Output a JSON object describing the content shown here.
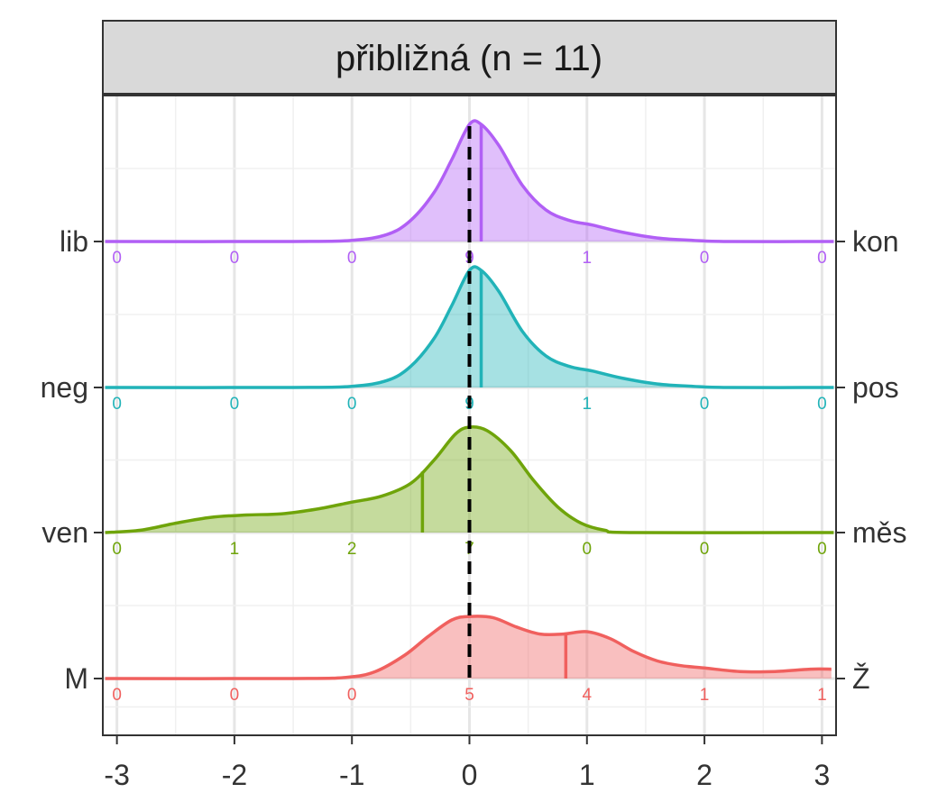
{
  "chart_data": {
    "type": "ridgeline-density",
    "title": "přibližná (n = 11)",
    "xlabel": "",
    "ylabel": "",
    "xlim": [
      -3.12,
      3.12
    ],
    "x_ticks": [
      -3,
      -2,
      -1,
      0,
      1,
      2,
      3
    ],
    "x_tick_labels": [
      "-3",
      "-2",
      "-1",
      "0",
      "1",
      "2",
      "3"
    ],
    "reference_line_x": 0,
    "grid": true,
    "count_bins": [
      -3,
      -2,
      -1,
      0,
      1,
      2,
      3
    ],
    "series": [
      {
        "left_label": "lib",
        "right_label": "kon",
        "color": "#B15FF5",
        "mean": 0.1,
        "counts": [
          "0",
          "0",
          "0",
          "9",
          "1",
          "0",
          "0"
        ],
        "density": [
          [
            -3.1,
            0
          ],
          [
            -1.5,
            0
          ],
          [
            -1.0,
            0.01
          ],
          [
            -0.7,
            0.06
          ],
          [
            -0.5,
            0.18
          ],
          [
            -0.3,
            0.42
          ],
          [
            -0.15,
            0.7
          ],
          [
            0,
            1.0
          ],
          [
            0.1,
            1.0
          ],
          [
            0.25,
            0.82
          ],
          [
            0.45,
            0.48
          ],
          [
            0.65,
            0.27
          ],
          [
            0.85,
            0.18
          ],
          [
            1.05,
            0.14
          ],
          [
            1.3,
            0.08
          ],
          [
            1.6,
            0.03
          ],
          [
            1.9,
            0.01
          ],
          [
            2.2,
            0
          ],
          [
            3.1,
            0
          ]
        ]
      },
      {
        "left_label": "neg",
        "right_label": "pos",
        "color": "#21B3B8",
        "mean": 0.1,
        "counts": [
          "0",
          "0",
          "0",
          "9",
          "1",
          "0",
          "0"
        ],
        "density": [
          [
            -3.1,
            0
          ],
          [
            -1.5,
            0
          ],
          [
            -1.0,
            0.01
          ],
          [
            -0.7,
            0.06
          ],
          [
            -0.5,
            0.18
          ],
          [
            -0.3,
            0.42
          ],
          [
            -0.15,
            0.7
          ],
          [
            0,
            1.0
          ],
          [
            0.1,
            1.0
          ],
          [
            0.25,
            0.82
          ],
          [
            0.45,
            0.48
          ],
          [
            0.65,
            0.27
          ],
          [
            0.85,
            0.18
          ],
          [
            1.05,
            0.14
          ],
          [
            1.3,
            0.08
          ],
          [
            1.6,
            0.03
          ],
          [
            1.9,
            0.01
          ],
          [
            2.2,
            0
          ],
          [
            3.1,
            0
          ]
        ]
      },
      {
        "left_label": "ven",
        "right_label": "měs",
        "color": "#6FA40A",
        "mean": -0.4,
        "counts": [
          "0",
          "1",
          "2",
          "7",
          "0",
          "0",
          "0"
        ],
        "density": [
          [
            -3.1,
            0
          ],
          [
            -2.8,
            0.02
          ],
          [
            -2.5,
            0.08
          ],
          [
            -2.2,
            0.13
          ],
          [
            -1.9,
            0.15
          ],
          [
            -1.6,
            0.16
          ],
          [
            -1.3,
            0.2
          ],
          [
            -1.0,
            0.26
          ],
          [
            -0.75,
            0.31
          ],
          [
            -0.5,
            0.42
          ],
          [
            -0.3,
            0.62
          ],
          [
            -0.12,
            0.84
          ],
          [
            0,
            0.9
          ],
          [
            0.15,
            0.87
          ],
          [
            0.35,
            0.7
          ],
          [
            0.55,
            0.44
          ],
          [
            0.75,
            0.22
          ],
          [
            0.95,
            0.08
          ],
          [
            1.15,
            0.02
          ],
          [
            1.4,
            0
          ],
          [
            3.1,
            0
          ]
        ]
      },
      {
        "left_label": "M",
        "right_label": "Ž",
        "color": "#F0605E",
        "mean": 0.82,
        "counts": [
          "0",
          "0",
          "0",
          "5",
          "4",
          "1",
          "1"
        ],
        "density": [
          [
            -3.1,
            0
          ],
          [
            -1.5,
            0
          ],
          [
            -1.05,
            0.01
          ],
          [
            -0.8,
            0.06
          ],
          [
            -0.55,
            0.2
          ],
          [
            -0.35,
            0.36
          ],
          [
            -0.15,
            0.5
          ],
          [
            0,
            0.53
          ],
          [
            0.2,
            0.52
          ],
          [
            0.4,
            0.44
          ],
          [
            0.6,
            0.38
          ],
          [
            0.8,
            0.38
          ],
          [
            1.0,
            0.4
          ],
          [
            1.2,
            0.34
          ],
          [
            1.4,
            0.23
          ],
          [
            1.6,
            0.15
          ],
          [
            1.8,
            0.11
          ],
          [
            2.0,
            0.09
          ],
          [
            2.3,
            0.06
          ],
          [
            2.6,
            0.06
          ],
          [
            2.9,
            0.08
          ],
          [
            3.08,
            0.08
          ]
        ]
      }
    ]
  }
}
